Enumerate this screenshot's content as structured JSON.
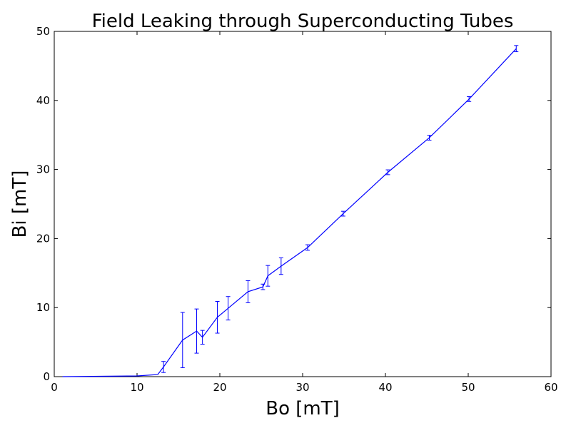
{
  "chart_data": {
    "type": "line",
    "title": "Field Leaking through Superconducting Tubes",
    "xlabel": "Bo [mT]",
    "ylabel": "Bi [mT]",
    "xlim": [
      0,
      60
    ],
    "ylim": [
      0,
      50
    ],
    "xticks": [
      0,
      10,
      20,
      30,
      40,
      50,
      60
    ],
    "yticks": [
      0,
      10,
      20,
      30,
      40,
      50
    ],
    "grid": false,
    "colors": {
      "series": "#0000ff",
      "axes": "#000000"
    },
    "series": [
      {
        "x": [
          1.0,
          10.0,
          12.5,
          13.2,
          15.5,
          17.2,
          17.9,
          19.7,
          21.0,
          23.4,
          25.2,
          25.8,
          27.4,
          30.6,
          34.9,
          40.3,
          45.3,
          50.1,
          55.8
        ],
        "y": [
          0.0,
          0.1,
          0.3,
          1.4,
          5.3,
          6.6,
          5.7,
          8.6,
          9.9,
          12.3,
          13.0,
          14.6,
          16.0,
          18.7,
          23.6,
          29.6,
          34.6,
          40.2,
          47.5
        ],
        "err": [
          0.0,
          0.0,
          0.0,
          0.8,
          4.0,
          3.2,
          1.0,
          2.3,
          1.7,
          1.6,
          0.4,
          1.5,
          1.2,
          0.4,
          0.35,
          0.35,
          0.35,
          0.35,
          0.45
        ]
      }
    ]
  }
}
